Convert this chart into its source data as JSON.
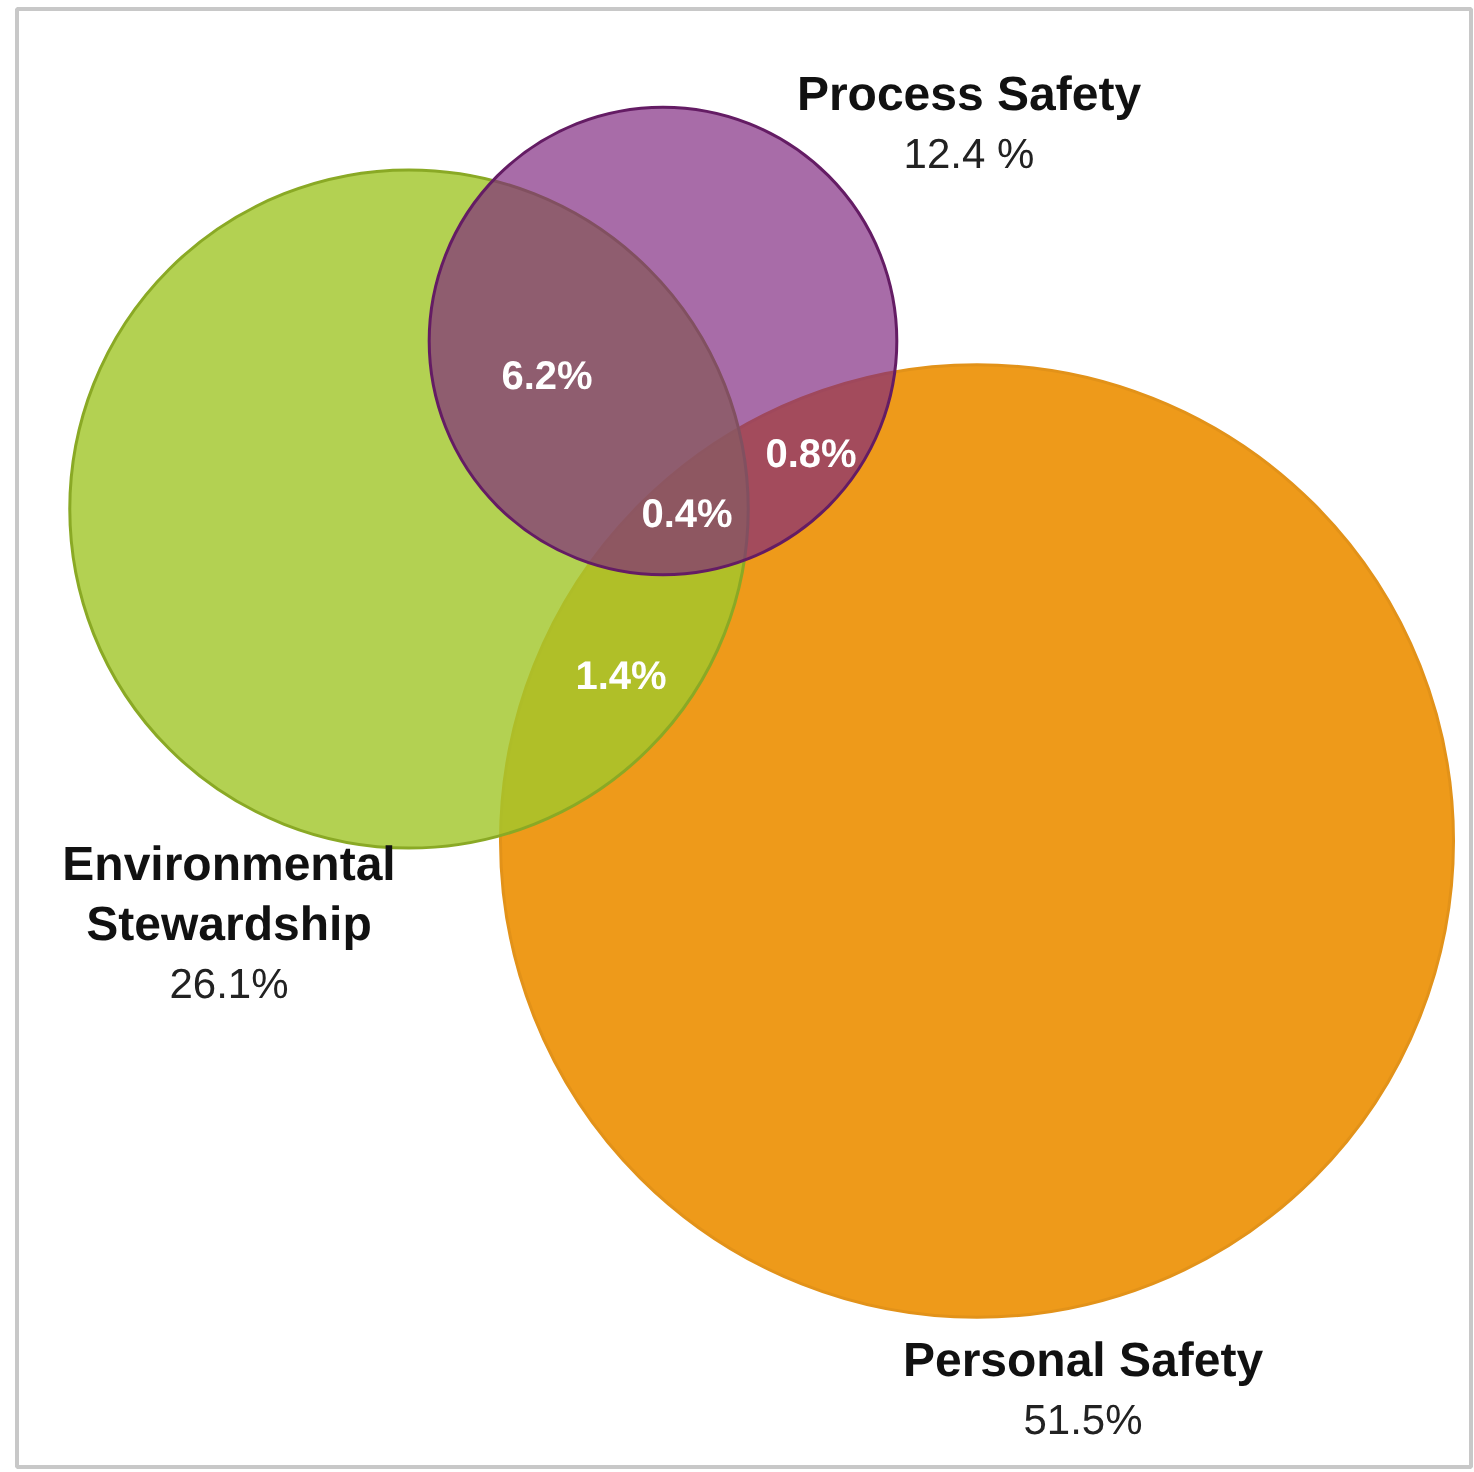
{
  "chart_data": {
    "type": "other",
    "categories": [
      "Process Safety",
      "Environmental Stewardship",
      "Personal Safety"
    ],
    "values": [
      12.4,
      26.1,
      51.5
    ],
    "value_labels": [
      "12.4 %",
      "26.1%",
      "51.5%"
    ],
    "colors": [
      "#a86ca8",
      "#b3d152",
      "#ee9a1a"
    ],
    "annotations": [
      "6.2%",
      "0.8%",
      "0.4%",
      "1.4%"
    ]
  }
}
